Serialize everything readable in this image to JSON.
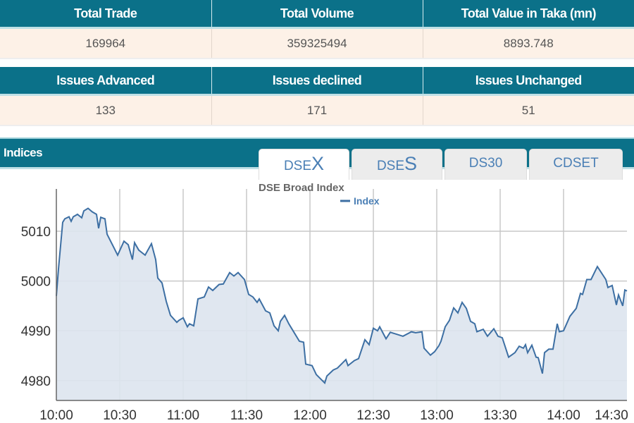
{
  "summary1": {
    "headers": [
      "Total Trade",
      "Total Volume",
      "Total Value in Taka (mn)"
    ],
    "values": [
      "169964",
      "359325494",
      "8893.748"
    ]
  },
  "summary2": {
    "headers": [
      "Issues Advanced",
      "Issues declined",
      "Issues Unchanged"
    ],
    "values": [
      "133",
      "171",
      "51"
    ]
  },
  "indices": {
    "title": "Indices",
    "tabs": [
      {
        "prefix": "DSE",
        "suffix": "X",
        "active": true
      },
      {
        "prefix": "DSE",
        "suffix": "S",
        "active": false
      },
      {
        "prefix": "DS30",
        "suffix": "",
        "active": false
      },
      {
        "prefix": "CDSET",
        "suffix": "",
        "active": false
      }
    ]
  },
  "colors": {
    "header": "#0b7189",
    "line": "#3d6fa3",
    "fill": "#dde4ee",
    "tab_text": "#4a7fb5"
  },
  "chart_data": {
    "type": "area",
    "title": "DSE Broad Index",
    "legend": {
      "entries": [
        "Index"
      ],
      "placement": "top-center"
    },
    "xlabel": "",
    "ylabel": "",
    "xlim": [
      "10:00",
      "14:30"
    ],
    "ylim": [
      4976,
      5018.5
    ],
    "x_ticks": [
      "10:00",
      "10:30",
      "11:00",
      "11:30",
      "12:00",
      "12:30",
      "13:00",
      "13:30",
      "14:00",
      "14:30"
    ],
    "y_ticks": [
      4980,
      4990,
      5000,
      5010
    ],
    "grid": true,
    "series": [
      {
        "name": "Index",
        "points": [
          [
            "10:00",
            4997.0
          ],
          [
            "10:01",
            5002.4
          ],
          [
            "10:03",
            5011.8
          ],
          [
            "10:04",
            5012.5
          ],
          [
            "10:06",
            5012.9
          ],
          [
            "10:07",
            5012.0
          ],
          [
            "10:08",
            5012.9
          ],
          [
            "10:10",
            5013.4
          ],
          [
            "10:12",
            5012.7
          ],
          [
            "10:13",
            5014.1
          ],
          [
            "10:15",
            5014.6
          ],
          [
            "10:17",
            5013.9
          ],
          [
            "10:19",
            5013.4
          ],
          [
            "10:20",
            5010.6
          ],
          [
            "10:21",
            5012.8
          ],
          [
            "10:23",
            5012.5
          ],
          [
            "10:24",
            5009.4
          ],
          [
            "10:27",
            5006.9
          ],
          [
            "10:29",
            5005.2
          ],
          [
            "10:32",
            5008.0
          ],
          [
            "10:34",
            5007.3
          ],
          [
            "10:36",
            5004.3
          ],
          [
            "10:37",
            5007.7
          ],
          [
            "10:39",
            5006.2
          ],
          [
            "10:42",
            5005.2
          ],
          [
            "10:45",
            5007.5
          ],
          [
            "10:47",
            5004.3
          ],
          [
            "10:48",
            5000.6
          ],
          [
            "10:50",
            4999.6
          ],
          [
            "10:52",
            4995.9
          ],
          [
            "10:54",
            4993.1
          ],
          [
            "10:57",
            4991.7
          ],
          [
            "10:58",
            4992.1
          ],
          [
            "11:00",
            4992.6
          ],
          [
            "11:02",
            4990.8
          ],
          [
            "11:03",
            4991.4
          ],
          [
            "11:05",
            4991.0
          ],
          [
            "11:07",
            4996.4
          ],
          [
            "11:10",
            4996.8
          ],
          [
            "11:12",
            4998.8
          ],
          [
            "11:14",
            4998.1
          ],
          [
            "11:17",
            4999.3
          ],
          [
            "11:19",
            4999.4
          ],
          [
            "11:22",
            5001.7
          ],
          [
            "11:24",
            5001.0
          ],
          [
            "11:26",
            5001.7
          ],
          [
            "11:29",
            5000.3
          ],
          [
            "11:31",
            4997.3
          ],
          [
            "11:33",
            4996.8
          ],
          [
            "11:35",
            4995.7
          ],
          [
            "11:36",
            4996.4
          ],
          [
            "11:39",
            4994.0
          ],
          [
            "11:41",
            4993.6
          ],
          [
            "11:43",
            4991.0
          ],
          [
            "11:45",
            4990.0
          ],
          [
            "11:46",
            4991.9
          ],
          [
            "11:48",
            4993.1
          ],
          [
            "11:50",
            4991.4
          ],
          [
            "11:52",
            4990.0
          ],
          [
            "11:55",
            4987.9
          ],
          [
            "11:57",
            4987.7
          ],
          [
            "11:58",
            4983.3
          ],
          [
            "12:01",
            4983.0
          ],
          [
            "12:03",
            4981.2
          ],
          [
            "12:07",
            4979.5
          ],
          [
            "12:08",
            4980.9
          ],
          [
            "12:11",
            4982.1
          ],
          [
            "12:13",
            4982.5
          ],
          [
            "12:17",
            4984.2
          ],
          [
            "12:18",
            4983.0
          ],
          [
            "12:21",
            4984.0
          ],
          [
            "12:23",
            4984.4
          ],
          [
            "12:26",
            4988.2
          ],
          [
            "12:28",
            4987.2
          ],
          [
            "12:30",
            4990.5
          ],
          [
            "12:32",
            4990.0
          ],
          [
            "12:33",
            4990.8
          ],
          [
            "12:36",
            4988.4
          ],
          [
            "12:38",
            4989.7
          ],
          [
            "12:41",
            4989.3
          ],
          [
            "12:44",
            4988.9
          ],
          [
            "12:48",
            4989.8
          ],
          [
            "12:50",
            4989.6
          ],
          [
            "12:53",
            4989.8
          ],
          [
            "12:54",
            4986.5
          ],
          [
            "12:57",
            4985.1
          ],
          [
            "12:59",
            4985.8
          ],
          [
            "13:01",
            4987.0
          ],
          [
            "13:02",
            4987.9
          ],
          [
            "13:04",
            4990.8
          ],
          [
            "13:06",
            4992.1
          ],
          [
            "13:08",
            4994.6
          ],
          [
            "13:10",
            4993.6
          ],
          [
            "13:12",
            4995.7
          ],
          [
            "13:14",
            4994.5
          ],
          [
            "13:16",
            4991.9
          ],
          [
            "13:18",
            4991.4
          ],
          [
            "13:19",
            4989.8
          ],
          [
            "13:22",
            4990.3
          ],
          [
            "13:24",
            4988.9
          ],
          [
            "13:27",
            4990.4
          ],
          [
            "13:29",
            4988.9
          ],
          [
            "13:31",
            4988.6
          ],
          [
            "13:34",
            4984.7
          ],
          [
            "13:37",
            4985.6
          ],
          [
            "13:39",
            4986.9
          ],
          [
            "13:41",
            4986.5
          ],
          [
            "13:42",
            4987.2
          ],
          [
            "13:43",
            4985.6
          ],
          [
            "13:45",
            4987.1
          ],
          [
            "13:47",
            4984.7
          ],
          [
            "13:48",
            4984.6
          ],
          [
            "13:50",
            4981.4
          ],
          [
            "13:51",
            4985.6
          ],
          [
            "13:53",
            4986.3
          ],
          [
            "13:55",
            4986.3
          ],
          [
            "13:57",
            4991.4
          ],
          [
            "13:58",
            4989.8
          ],
          [
            "14:00",
            4990.0
          ],
          [
            "14:03",
            4992.9
          ],
          [
            "14:06",
            4994.5
          ],
          [
            "14:08",
            4997.5
          ],
          [
            "14:09",
            4997.3
          ],
          [
            "14:11",
            5000.3
          ],
          [
            "14:13",
            5000.3
          ],
          [
            "14:16",
            5002.9
          ],
          [
            "14:20",
            5000.3
          ],
          [
            "14:21",
            4998.7
          ],
          [
            "14:23",
            4999.1
          ],
          [
            "14:25",
            4995.2
          ],
          [
            "14:26",
            4997.2
          ],
          [
            "14:28",
            4995.0
          ],
          [
            "14:29",
            4998.2
          ],
          [
            "14:30",
            4998.0
          ]
        ]
      }
    ]
  }
}
